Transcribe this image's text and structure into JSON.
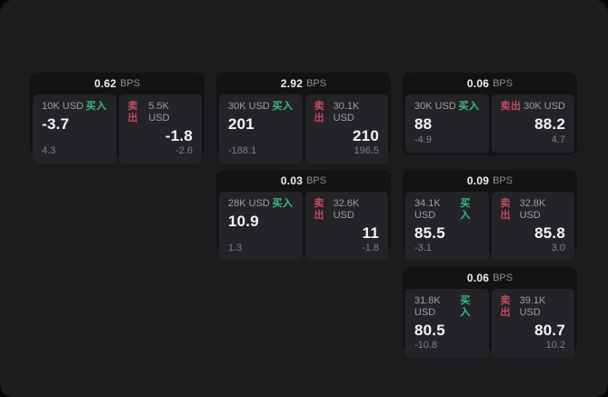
{
  "labels": {
    "bps_unit": "BPS",
    "buy": "买入",
    "sell": "卖出"
  },
  "colors": {
    "page_background": "#1c1c1e",
    "card_background": "#131315",
    "panel_background": "#242428",
    "buy_green": "#3abc83",
    "sell_red": "#c24a5e"
  },
  "cards": [
    {
      "row": 1,
      "col": 1,
      "bps": "0.62",
      "buy": {
        "size": "10K USD",
        "value": "-3.7",
        "delta": "4.3"
      },
      "sell": {
        "size": "5.5K USD",
        "value": "-1.8",
        "delta": "-2.6"
      }
    },
    {
      "row": 1,
      "col": 2,
      "bps": "2.92",
      "buy": {
        "size": "30K USD",
        "value": "201",
        "delta": "-188.1"
      },
      "sell": {
        "size": "30.1K USD",
        "value": "210",
        "delta": "196.5"
      }
    },
    {
      "row": 1,
      "col": 3,
      "bps": "0.06",
      "buy": {
        "size": "30K USD",
        "value": "88",
        "delta": "-4.9"
      },
      "sell": {
        "size": "30K USD",
        "value": "88.2",
        "delta": "4.7"
      }
    },
    {
      "row": 2,
      "col": 2,
      "bps": "0.03",
      "buy": {
        "size": "28K USD",
        "value": "10.9",
        "delta": "1.3"
      },
      "sell": {
        "size": "32.6K USD",
        "value": "11",
        "delta": "-1.8"
      }
    },
    {
      "row": 2,
      "col": 3,
      "bps": "0.09",
      "buy": {
        "size": "34.1K USD",
        "value": "85.5",
        "delta": "-3.1"
      },
      "sell": {
        "size": "32.8K USD",
        "value": "85.8",
        "delta": "3.0"
      }
    },
    {
      "row": 3,
      "col": 3,
      "bps": "0.06",
      "buy": {
        "size": "31.8K USD",
        "value": "80.5",
        "delta": "-10.8"
      },
      "sell": {
        "size": "39.1K USD",
        "value": "80.7",
        "delta": "10.2"
      }
    }
  ]
}
